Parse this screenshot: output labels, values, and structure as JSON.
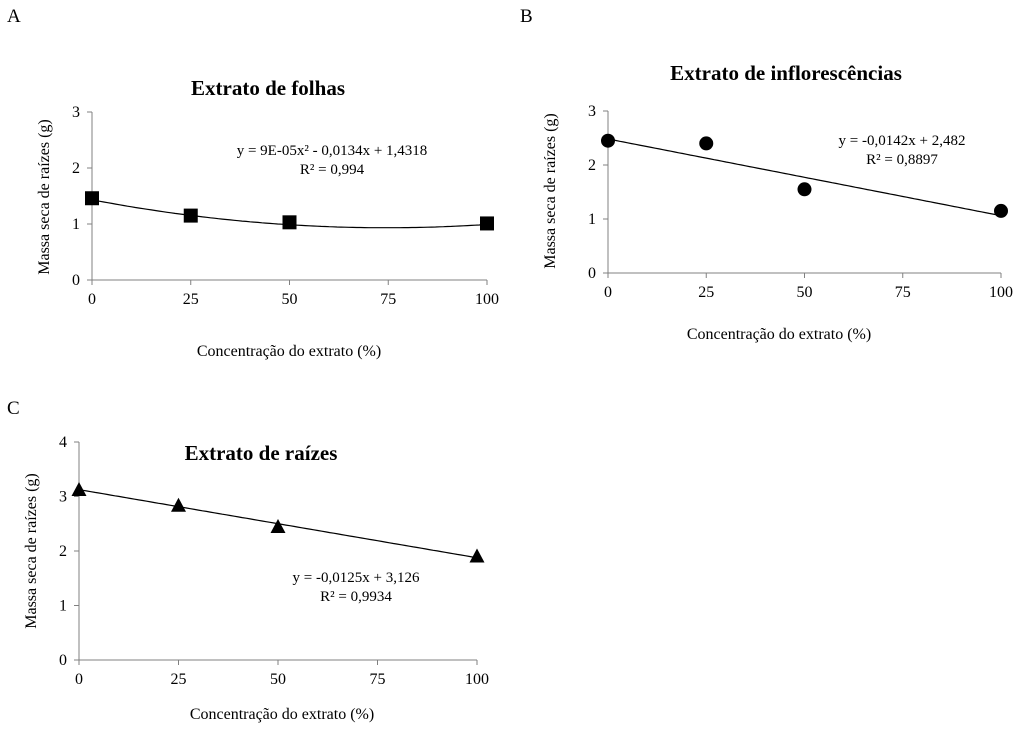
{
  "chart_data": [
    {
      "panel": "A",
      "type": "scatter",
      "title": "Extrato de folhas",
      "xlabel": "Concentração do extrato (%)",
      "ylabel": "Massa seca de raízes (g)",
      "xlim": [
        0,
        100
      ],
      "ylim": [
        0,
        3
      ],
      "xticks": [
        "0",
        "25",
        "50",
        "75",
        "100"
      ],
      "yticks": [
        "0",
        "1",
        "2",
        "3"
      ],
      "marker": "square",
      "x": [
        0,
        25,
        50,
        100
      ],
      "y": [
        1.46,
        1.15,
        1.03,
        1.01
      ],
      "trendline": {
        "kind": "quadratic",
        "a": 9e-05,
        "b": -0.0134,
        "c": 1.4318
      },
      "equation": "y = 9E-05x² - 0,0134x + 1,4318",
      "r2": "R² = 0,994"
    },
    {
      "panel": "B",
      "type": "scatter",
      "title": "Extrato de inflorescências",
      "xlabel": "Concentração do extrato (%)",
      "ylabel": "Massa seca de raízes (g)",
      "xlim": [
        0,
        100
      ],
      "ylim": [
        0,
        3
      ],
      "xticks": [
        "0",
        "25",
        "50",
        "75",
        "100"
      ],
      "yticks": [
        "0",
        "1",
        "2",
        "3"
      ],
      "marker": "circle",
      "x": [
        0,
        25,
        50,
        100
      ],
      "y": [
        2.45,
        2.4,
        1.55,
        1.15
      ],
      "trendline": {
        "kind": "linear",
        "a": 0,
        "b": -0.0142,
        "c": 2.482
      },
      "equation": "y = -0,0142x + 2,482",
      "r2": "R² = 0,8897"
    },
    {
      "panel": "C",
      "type": "scatter",
      "title": "Extrato de raízes",
      "xlabel": "Concentração do extrato (%)",
      "ylabel": "Massa seca de raízes (g)",
      "xlim": [
        0,
        100
      ],
      "ylim": [
        0,
        4
      ],
      "xticks": [
        "0",
        "25",
        "50",
        "75",
        "100"
      ],
      "yticks": [
        "0",
        "1",
        "2",
        "3",
        "4"
      ],
      "marker": "triangle",
      "x": [
        0,
        25,
        50,
        100
      ],
      "y": [
        3.12,
        2.83,
        2.44,
        1.9
      ],
      "trendline": {
        "kind": "linear",
        "a": 0,
        "b": -0.0125,
        "c": 3.126
      },
      "equation": "y = -0,0125x + 3,126",
      "r2": "R² = 0,9934"
    }
  ]
}
